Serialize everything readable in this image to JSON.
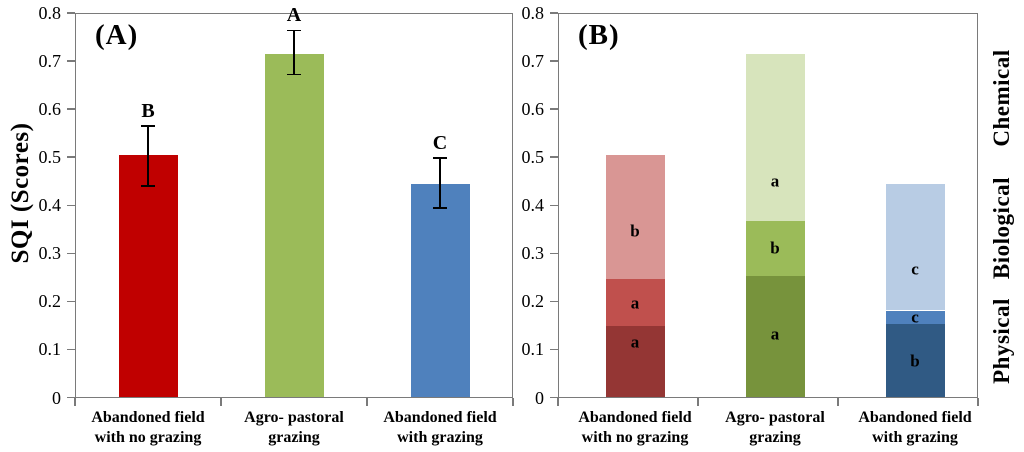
{
  "figure": {
    "y_axis_title": "SQI (Scores)",
    "ylim": [
      0,
      0.8
    ],
    "y_ticks": [
      {
        "value": 0.0,
        "label": "0"
      },
      {
        "value": 0.1,
        "label": "0.1"
      },
      {
        "value": 0.2,
        "label": "0.2"
      },
      {
        "value": 0.3,
        "label": "0.3"
      },
      {
        "value": 0.4,
        "label": "0.4"
      },
      {
        "value": 0.5,
        "label": "0.5"
      },
      {
        "value": 0.6,
        "label": "0.6"
      },
      {
        "value": 0.7,
        "label": "0.7"
      },
      {
        "value": 0.8,
        "label": "0.8"
      }
    ]
  },
  "chart_data": [
    {
      "type": "bar",
      "panel_label": "(A)",
      "ylabel": "SQI (Scores)",
      "ylim": [
        0,
        0.8
      ],
      "grid": false,
      "categories": [
        "Abandoned field\nwith no grazing",
        "Agro- pastoral\ngrazing",
        "Abandoned field\nwith grazing"
      ],
      "values": [
        0.505,
        0.715,
        0.445
      ],
      "error_low": [
        0.44,
        0.672,
        0.394
      ],
      "error_high": [
        0.565,
        0.764,
        0.498
      ],
      "sig_letters": [
        "B",
        "A",
        "C"
      ],
      "bar_colors": [
        "#c00000",
        "#9bbb59",
        "#4f81bd"
      ]
    },
    {
      "type": "stacked-bar",
      "panel_label": "(B)",
      "ylim": [
        0,
        0.8
      ],
      "grid": false,
      "categories": [
        "Abandoned field\nwith no grazing",
        "Agro- pastoral\ngrazing",
        "Abandoned field\nwith grazing"
      ],
      "series": [
        {
          "name": "Physical",
          "values": [
            0.148,
            0.253,
            0.153
          ],
          "sig_letters": [
            "a",
            "a",
            "b"
          ],
          "colors": [
            "#943634",
            "#77933c",
            "#305a84"
          ]
        },
        {
          "name": "Biological",
          "values": [
            0.098,
            0.115,
            0.028
          ],
          "sig_letters": [
            "a",
            "b",
            "c"
          ],
          "colors": [
            "#c0504d",
            "#9bbb59",
            "#4f81bd"
          ]
        },
        {
          "name": "Chemical",
          "values": [
            0.259,
            0.347,
            0.264
          ],
          "sig_letters": [
            "b",
            "a",
            "c"
          ],
          "colors": [
            "#d99694",
            "#d7e4bc",
            "#b8cce4"
          ]
        }
      ],
      "right_axis_labels": [
        "Physical",
        "Biological",
        "Chemical"
      ]
    }
  ]
}
